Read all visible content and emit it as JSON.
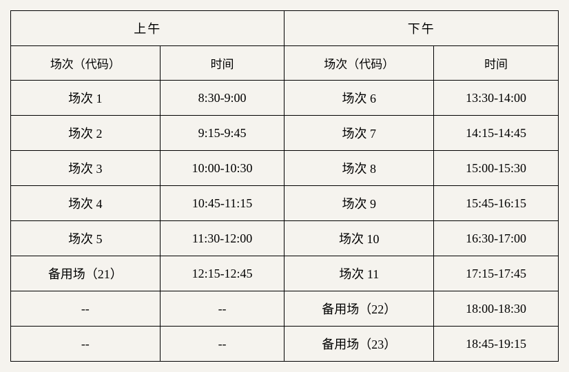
{
  "table": {
    "type": "table",
    "background_color": "#f5f3ee",
    "border_color": "#000000",
    "border_width": 1.5,
    "font_family": "SimSun",
    "cell_fontsize": 18,
    "text_color": "#000000",
    "columns_count": 4,
    "top_headers": {
      "left": "上午",
      "right": "下午"
    },
    "sub_headers": {
      "session_code": "场次（代码）",
      "time": "时间"
    },
    "rows": [
      {
        "am_session": "场次 1",
        "am_time": "8:30-9:00",
        "pm_session": "场次 6",
        "pm_time": "13:30-14:00"
      },
      {
        "am_session": "场次 2",
        "am_time": "9:15-9:45",
        "pm_session": "场次 7",
        "pm_time": "14:15-14:45"
      },
      {
        "am_session": "场次 3",
        "am_time": "10:00-10:30",
        "pm_session": "场次 8",
        "pm_time": "15:00-15:30"
      },
      {
        "am_session": "场次 4",
        "am_time": "10:45-11:15",
        "pm_session": "场次 9",
        "pm_time": "15:45-16:15"
      },
      {
        "am_session": "场次 5",
        "am_time": "11:30-12:00",
        "pm_session": "场次 10",
        "pm_time": "16:30-17:00"
      },
      {
        "am_session": "备用场（21）",
        "am_time": "12:15-12:45",
        "pm_session": "场次 11",
        "pm_time": "17:15-17:45"
      },
      {
        "am_session": "--",
        "am_time": "--",
        "pm_session": "备用场（22）",
        "pm_time": "18:00-18:30"
      },
      {
        "am_session": "--",
        "am_time": "--",
        "pm_session": "备用场（23）",
        "pm_time": "18:45-19:15"
      }
    ]
  }
}
